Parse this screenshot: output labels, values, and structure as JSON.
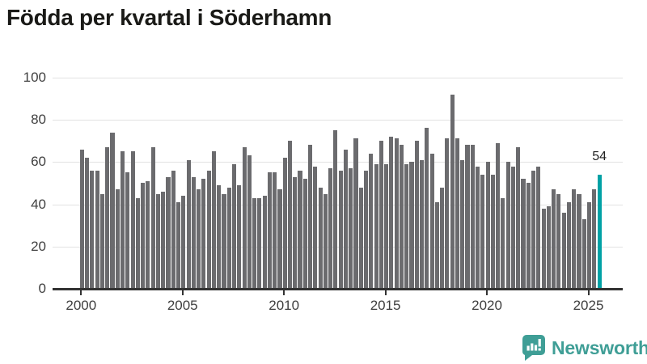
{
  "chart_data": {
    "type": "bar",
    "title": "Födda per kvartal i Söderhamn",
    "xlabel": "",
    "ylabel": "",
    "ylim": [
      0,
      100
    ],
    "yticks": [
      0,
      20,
      40,
      60,
      80,
      100
    ],
    "xticks": [
      2000,
      2005,
      2010,
      2015,
      2020,
      2025
    ],
    "grid": "horizontal",
    "legend": "none",
    "categories": [
      "2000-Q1",
      "2000-Q2",
      "2000-Q3",
      "2000-Q4",
      "2001-Q1",
      "2001-Q2",
      "2001-Q3",
      "2001-Q4",
      "2002-Q1",
      "2002-Q2",
      "2002-Q3",
      "2002-Q4",
      "2003-Q1",
      "2003-Q2",
      "2003-Q3",
      "2003-Q4",
      "2004-Q1",
      "2004-Q2",
      "2004-Q3",
      "2004-Q4",
      "2005-Q1",
      "2005-Q2",
      "2005-Q3",
      "2005-Q4",
      "2006-Q1",
      "2006-Q2",
      "2006-Q3",
      "2006-Q4",
      "2007-Q1",
      "2007-Q2",
      "2007-Q3",
      "2007-Q4",
      "2008-Q1",
      "2008-Q2",
      "2008-Q3",
      "2008-Q4",
      "2009-Q1",
      "2009-Q2",
      "2009-Q3",
      "2009-Q4",
      "2010-Q1",
      "2010-Q2",
      "2010-Q3",
      "2010-Q4",
      "2011-Q1",
      "2011-Q2",
      "2011-Q3",
      "2011-Q4",
      "2012-Q1",
      "2012-Q2",
      "2012-Q3",
      "2012-Q4",
      "2013-Q1",
      "2013-Q2",
      "2013-Q3",
      "2013-Q4",
      "2014-Q1",
      "2014-Q2",
      "2014-Q3",
      "2014-Q4",
      "2015-Q1",
      "2015-Q2",
      "2015-Q3",
      "2015-Q4",
      "2016-Q1",
      "2016-Q2",
      "2016-Q3",
      "2016-Q4",
      "2017-Q1",
      "2017-Q2",
      "2017-Q3",
      "2017-Q4",
      "2018-Q1",
      "2018-Q2",
      "2018-Q3",
      "2018-Q4",
      "2019-Q1",
      "2019-Q2",
      "2019-Q3",
      "2019-Q4",
      "2020-Q1",
      "2020-Q2",
      "2020-Q3",
      "2020-Q4",
      "2021-Q1",
      "2021-Q2",
      "2021-Q3",
      "2021-Q4",
      "2022-Q1",
      "2022-Q2",
      "2022-Q3",
      "2022-Q4",
      "2023-Q1",
      "2023-Q2",
      "2023-Q3",
      "2023-Q4",
      "2024-Q1",
      "2024-Q2",
      "2024-Q3",
      "2024-Q4",
      "2025-Q1",
      "2025-Q2",
      "2025-Q3"
    ],
    "values": [
      66,
      62,
      56,
      56,
      45,
      67,
      74,
      47,
      65,
      55,
      65,
      43,
      50,
      51,
      67,
      45,
      46,
      53,
      56,
      41,
      44,
      61,
      53,
      47,
      52,
      56,
      65,
      49,
      45,
      48,
      59,
      49,
      67,
      63,
      43,
      43,
      44,
      55,
      55,
      47,
      62,
      70,
      53,
      56,
      52,
      68,
      58,
      48,
      45,
      57,
      75,
      56,
      66,
      57,
      71,
      48,
      56,
      64,
      59,
      70,
      59,
      72,
      71,
      68,
      59,
      60,
      70,
      61,
      76,
      64,
      41,
      48,
      71,
      92,
      71,
      61,
      68,
      68,
      58,
      54,
      60,
      54,
      69,
      43,
      60,
      58,
      67,
      52,
      50,
      56,
      58,
      38,
      39,
      47,
      45,
      36,
      41,
      47,
      45,
      33,
      41,
      47,
      54
    ],
    "highlight": {
      "index": 102,
      "label": "54",
      "value": 54
    }
  },
  "colors": {
    "bar": "#6b6b6e",
    "highlight": "#00a1a5",
    "grid": "#e2e2e2",
    "axis": "#333333",
    "tick_text": "#3f3f3f",
    "title_text": "#1a1a17",
    "brand_teal": "#3f9e96"
  },
  "footer": {
    "brand_label": "Newsworthy"
  }
}
